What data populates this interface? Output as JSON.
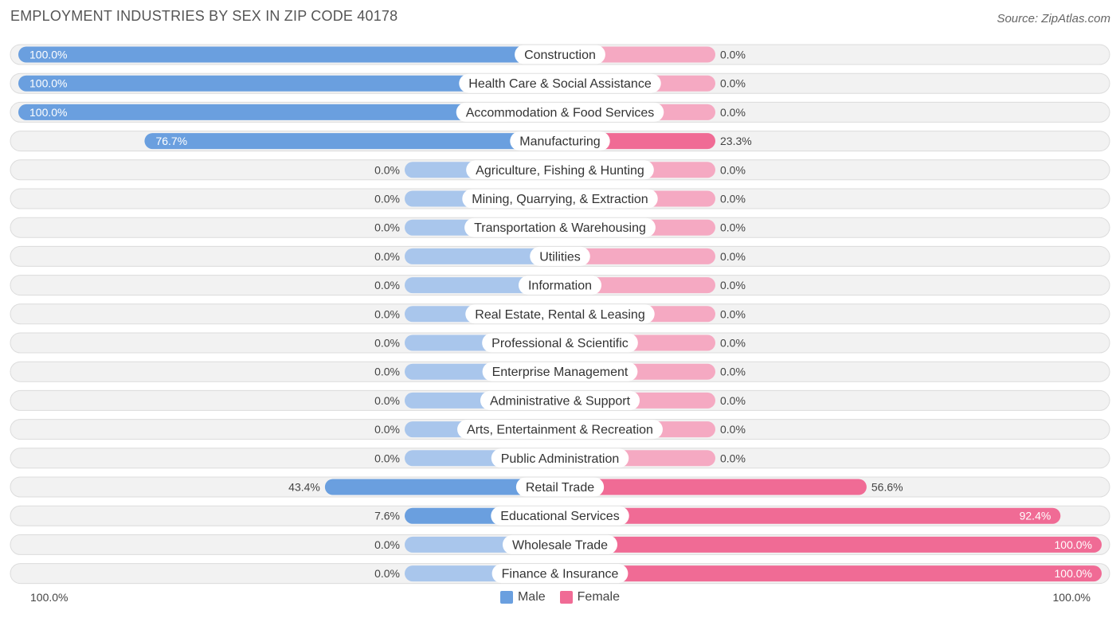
{
  "chart_data": {
    "type": "bar",
    "orientation": "horizontal-diverging",
    "title": "EMPLOYMENT INDUSTRIES BY SEX IN ZIP CODE 40178",
    "source": "Source: ZipAtlas.com",
    "categories": [
      "Construction",
      "Health Care & Social Assistance",
      "Accommodation & Food Services",
      "Manufacturing",
      "Agriculture, Fishing & Hunting",
      "Mining, Quarrying, & Extraction",
      "Transportation & Warehousing",
      "Utilities",
      "Information",
      "Real Estate, Rental & Leasing",
      "Professional & Scientific",
      "Enterprise Management",
      "Administrative & Support",
      "Arts, Entertainment & Recreation",
      "Public Administration",
      "Retail Trade",
      "Educational Services",
      "Wholesale Trade",
      "Finance & Insurance"
    ],
    "series": [
      {
        "name": "Male",
        "color": "#6a9fdf",
        "color_light": "#a9c6ec",
        "values": [
          100.0,
          100.0,
          100.0,
          76.7,
          0.0,
          0.0,
          0.0,
          0.0,
          0.0,
          0.0,
          0.0,
          0.0,
          0.0,
          0.0,
          0.0,
          43.4,
          7.6,
          0.0,
          0.0
        ],
        "labels": [
          "100.0%",
          "100.0%",
          "100.0%",
          "76.7%",
          "0.0%",
          "0.0%",
          "0.0%",
          "0.0%",
          "0.0%",
          "0.0%",
          "0.0%",
          "0.0%",
          "0.0%",
          "0.0%",
          "0.0%",
          "43.4%",
          "7.6%",
          "0.0%",
          "0.0%"
        ]
      },
      {
        "name": "Female",
        "color": "#f06b95",
        "color_light": "#f5a9c2",
        "values": [
          0.0,
          0.0,
          0.0,
          23.3,
          0.0,
          0.0,
          0.0,
          0.0,
          0.0,
          0.0,
          0.0,
          0.0,
          0.0,
          0.0,
          0.0,
          56.6,
          92.4,
          100.0,
          100.0
        ],
        "labels": [
          "0.0%",
          "0.0%",
          "0.0%",
          "23.3%",
          "0.0%",
          "0.0%",
          "0.0%",
          "0.0%",
          "0.0%",
          "0.0%",
          "0.0%",
          "0.0%",
          "0.0%",
          "0.0%",
          "0.0%",
          "56.6%",
          "92.4%",
          "100.0%",
          "100.0%"
        ]
      }
    ],
    "xlim": [
      -100,
      100
    ],
    "axis_left_label": "100.0%",
    "axis_right_label": "100.0%",
    "legend_position": "bottom-center"
  }
}
